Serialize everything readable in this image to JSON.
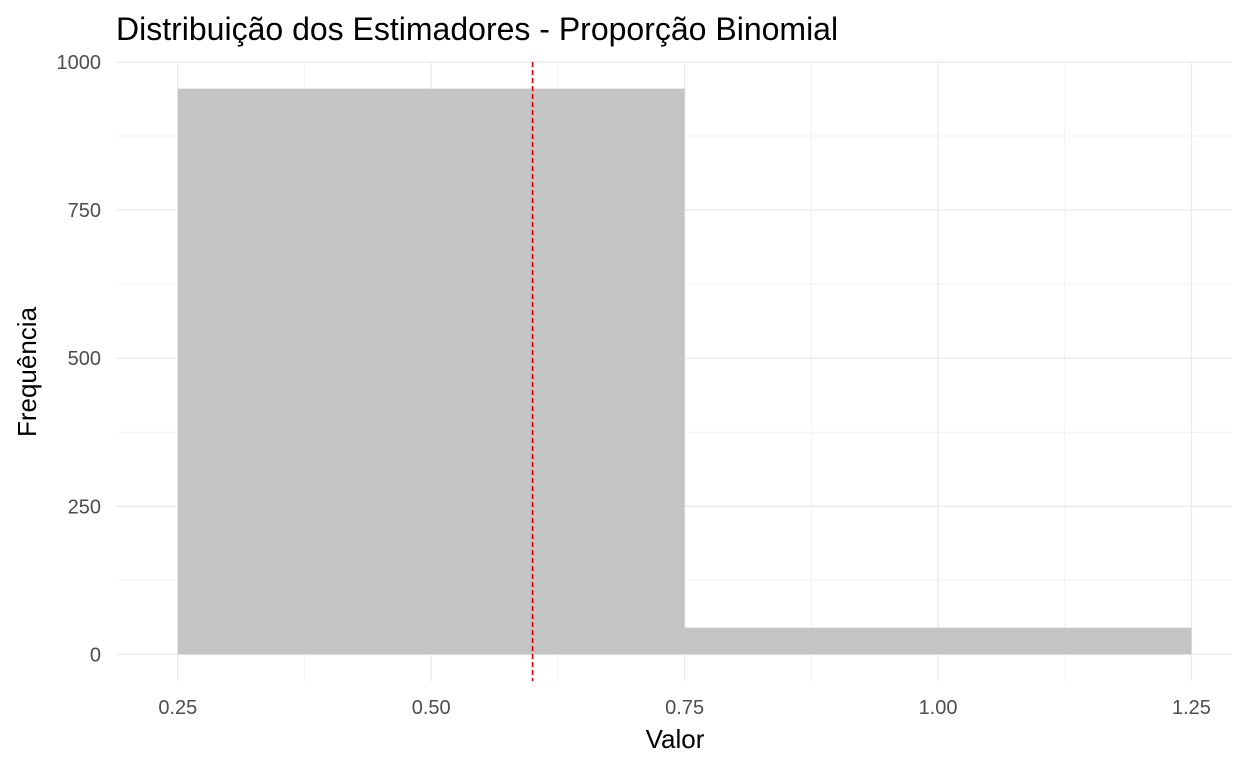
{
  "chart_data": {
    "type": "bar",
    "title": "Distribuição dos Estimadores - Proporção Binomial",
    "xlabel": "Valor",
    "ylabel": "Frequência",
    "bins": [
      {
        "x_start": 0.25,
        "x_end": 0.75,
        "count": 955
      },
      {
        "x_start": 0.75,
        "x_end": 1.25,
        "count": 45
      }
    ],
    "xlim": [
      0.19,
      1.29
    ],
    "ylim": [
      -45,
      1000
    ],
    "x_ticks": [
      0.25,
      0.5,
      0.75,
      1.0,
      1.25
    ],
    "x_tick_labels": [
      "0.25",
      "0.50",
      "0.75",
      "1.00",
      "1.25"
    ],
    "y_ticks": [
      0,
      250,
      500,
      750,
      1000
    ],
    "y_tick_labels": [
      "0",
      "250",
      "500",
      "750",
      "1000"
    ],
    "reference_line": {
      "x": 0.6,
      "style": "dashed"
    },
    "grid": true,
    "legend": "none",
    "colors": {
      "bar_fill": "#c4c4c4",
      "reference_line": "#cc0000",
      "grid_major": "#ebebeb",
      "grid_minor": "#f2f2f2",
      "tick_text": "#4d4d4d"
    }
  }
}
